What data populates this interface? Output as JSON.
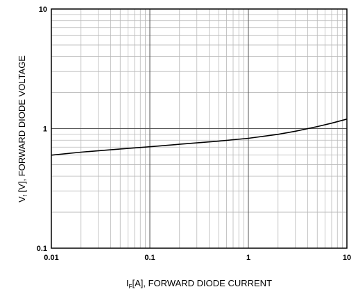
{
  "chart_data": {
    "type": "line",
    "xlabel": {
      "main": "I",
      "sub": "F",
      "rest": "[A], FORWARD DIODE CURRENT"
    },
    "ylabel": {
      "main": "V",
      "sub": "f",
      "rest": " [V], FORWARD DIODE VOLTAGE"
    },
    "xscale": "log",
    "yscale": "log",
    "xlim": [
      0.01,
      10
    ],
    "ylim": [
      0.1,
      10
    ],
    "grid": true,
    "x_tick_labels": [
      "0.01",
      "0.1",
      "1",
      "10"
    ],
    "y_tick_labels": [
      "0.1",
      "1",
      "10"
    ],
    "series": [
      {
        "x": [
          0.01,
          0.02,
          0.05,
          0.1,
          0.2,
          0.5,
          1,
          2,
          3,
          5,
          7,
          10
        ],
        "y": [
          0.6,
          0.635,
          0.675,
          0.705,
          0.74,
          0.785,
          0.83,
          0.895,
          0.95,
          1.04,
          1.11,
          1.2
        ]
      }
    ]
  }
}
